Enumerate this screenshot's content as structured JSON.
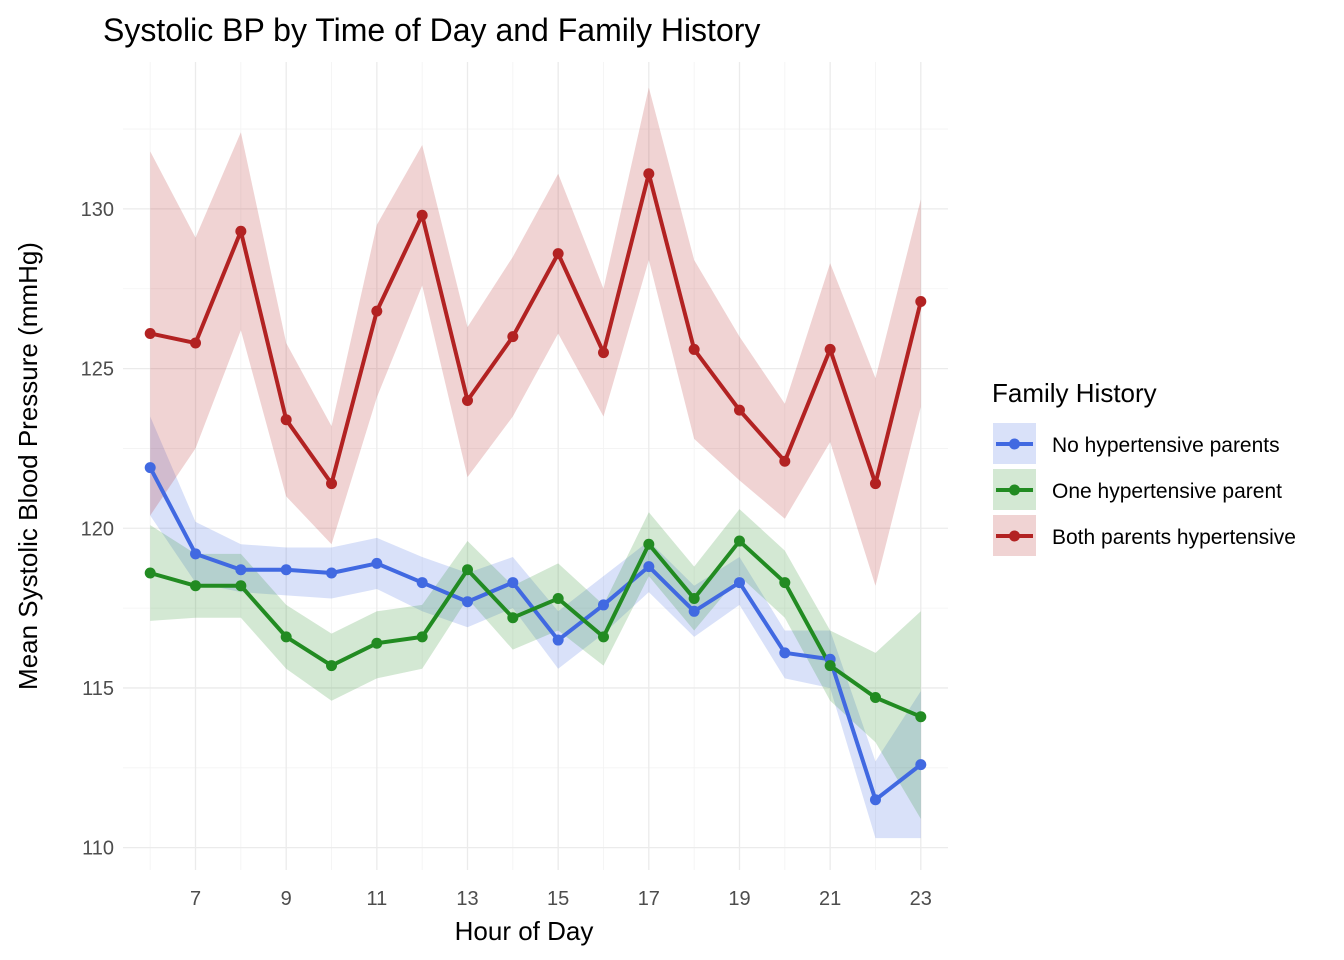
{
  "chart_data": {
    "type": "line",
    "title": "Systolic BP by Time of Day and Family History",
    "xlabel": "Hour of Day",
    "ylabel": "Mean Systolic Blood Pressure (mmHg)",
    "x": [
      6,
      7,
      8,
      9,
      10,
      11,
      12,
      13,
      14,
      15,
      16,
      17,
      18,
      19,
      20,
      21,
      22,
      23
    ],
    "xlim": [
      5.4,
      23.6
    ],
    "ylim": [
      109.3,
      134.6
    ],
    "xticks": [
      7,
      9,
      11,
      13,
      15,
      17,
      19,
      21,
      23
    ],
    "yticks": [
      110,
      115,
      120,
      125,
      130
    ],
    "grid": true,
    "legend": {
      "title": "Family History",
      "position": "right"
    },
    "series": [
      {
        "name": "No hypertensive parents",
        "color": "#4169E1",
        "values": [
          121.9,
          119.2,
          118.7,
          118.7,
          118.6,
          118.9,
          118.3,
          117.7,
          118.3,
          116.5,
          117.6,
          118.8,
          117.4,
          118.3,
          116.1,
          115.9,
          111.5,
          112.6
        ],
        "lower": [
          120.4,
          118.3,
          118.0,
          117.9,
          117.8,
          118.1,
          117.4,
          116.9,
          117.5,
          115.6,
          116.7,
          118.0,
          116.6,
          117.6,
          115.3,
          115.0,
          110.3,
          110.3
        ],
        "upper": [
          123.5,
          120.2,
          119.5,
          119.4,
          119.4,
          119.7,
          119.1,
          118.6,
          119.1,
          117.4,
          118.5,
          119.6,
          118.2,
          119.1,
          116.8,
          116.8,
          112.7,
          114.9
        ]
      },
      {
        "name": "One hypertensive parent",
        "color": "#228B22",
        "values": [
          118.6,
          118.2,
          118.2,
          116.6,
          115.7,
          116.4,
          116.6,
          118.7,
          117.2,
          117.8,
          116.6,
          119.5,
          117.8,
          119.6,
          118.3,
          115.7,
          114.7,
          114.1
        ],
        "lower": [
          117.1,
          117.2,
          117.2,
          115.6,
          114.6,
          115.3,
          115.6,
          117.8,
          116.2,
          116.8,
          115.7,
          118.5,
          116.8,
          118.5,
          117.2,
          114.6,
          113.3,
          110.9
        ],
        "upper": [
          120.1,
          119.2,
          119.2,
          117.6,
          116.7,
          117.4,
          117.6,
          119.6,
          118.2,
          118.9,
          117.6,
          120.5,
          118.8,
          120.6,
          119.3,
          116.8,
          116.1,
          117.4
        ]
      },
      {
        "name": "Both parents hypertensive",
        "color": "#B22222",
        "values": [
          126.1,
          125.8,
          129.3,
          123.4,
          121.4,
          126.8,
          129.8,
          124.0,
          126.0,
          128.6,
          125.5,
          131.1,
          125.6,
          123.7,
          122.1,
          125.6,
          121.4,
          127.1
        ],
        "lower": [
          120.4,
          122.5,
          126.2,
          121.0,
          119.5,
          124.1,
          127.6,
          121.6,
          123.5,
          126.1,
          123.5,
          128.4,
          122.8,
          121.5,
          120.3,
          122.7,
          118.2,
          123.8
        ],
        "upper": [
          131.8,
          129.1,
          132.4,
          125.8,
          123.2,
          129.5,
          132.0,
          126.3,
          128.5,
          131.1,
          127.5,
          133.8,
          128.4,
          126.0,
          123.9,
          128.3,
          124.7,
          130.3
        ]
      }
    ]
  }
}
